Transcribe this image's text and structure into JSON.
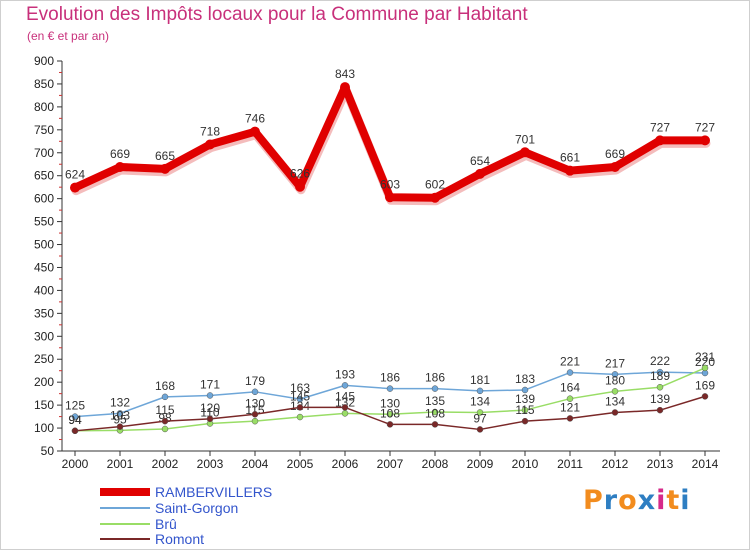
{
  "page": {
    "title": "Evolution des Impôts locaux pour la Commune par Habitant",
    "subtitle": "(en € et par an)"
  },
  "logo": {
    "text": "Proxiti",
    "letter_colors": [
      "#f28c1e",
      "#2e7ec2",
      "#f28c1e",
      "#2e7ec2",
      "#d62a8a",
      "#f28c1e",
      "#2e7ec2"
    ]
  },
  "chart_data": {
    "type": "line",
    "title": "Evolution des Impôts locaux pour la Commune par Habitant",
    "subtitle": "(en € et par an)",
    "xlabel": "",
    "ylabel": "",
    "x": [
      "2000",
      "2001",
      "2002",
      "2003",
      "2004",
      "2005",
      "2006",
      "2007",
      "2008",
      "2009",
      "2010",
      "2011",
      "2012",
      "2013",
      "2014"
    ],
    "ylim": [
      50,
      900
    ],
    "yticks": [
      50,
      100,
      150,
      200,
      250,
      300,
      350,
      400,
      450,
      500,
      550,
      600,
      650,
      700,
      750,
      800,
      850,
      900
    ],
    "grid": false,
    "legend_position": "bottom-left",
    "series": [
      {
        "name": "RAMBERVILLERS",
        "color": "#e00000",
        "values": [
          624,
          669,
          665,
          718,
          746,
          626,
          843,
          603,
          602,
          654,
          701,
          661,
          669,
          727,
          727
        ],
        "labels": [
          "624",
          "669",
          "665",
          "718",
          "746",
          "626",
          "843",
          "603",
          "602",
          "654",
          "701",
          "661",
          "669",
          "727",
          "727"
        ],
        "style": "thick"
      },
      {
        "name": "Saint-Gorgon",
        "color": "#6ea6d8",
        "values": [
          125,
          132,
          168,
          171,
          179,
          163,
          193,
          186,
          186,
          181,
          183,
          221,
          217,
          222,
          220
        ],
        "labels": [
          "125",
          "132",
          "168",
          "171",
          "179",
          "163",
          "193",
          "186",
          "186",
          "181",
          "183",
          "221",
          "217",
          "222",
          "220"
        ],
        "style": "thin"
      },
      {
        "name": "Brû",
        "color": "#99dd66",
        "values": [
          94,
          95,
          98,
          110,
          115,
          124,
          132,
          130,
          135,
          134,
          139,
          164,
          180,
          189,
          231
        ],
        "labels": [
          "94",
          "95",
          "98",
          "110",
          "115",
          "124",
          "132",
          "130",
          "135",
          "134",
          "139",
          "164",
          "180",
          "189",
          "231"
        ],
        "style": "thin"
      },
      {
        "name": "Romont",
        "color": "#7a2828",
        "values": [
          94,
          103,
          115,
          120,
          130,
          145,
          145,
          108,
          108,
          97,
          115,
          121,
          134,
          139,
          169
        ],
        "labels": [
          "94",
          "103",
          "115",
          "120",
          "130",
          "145",
          "145",
          "108",
          "108",
          "97",
          "115",
          "121",
          "134",
          "139",
          "169"
        ],
        "style": "thin"
      }
    ]
  }
}
